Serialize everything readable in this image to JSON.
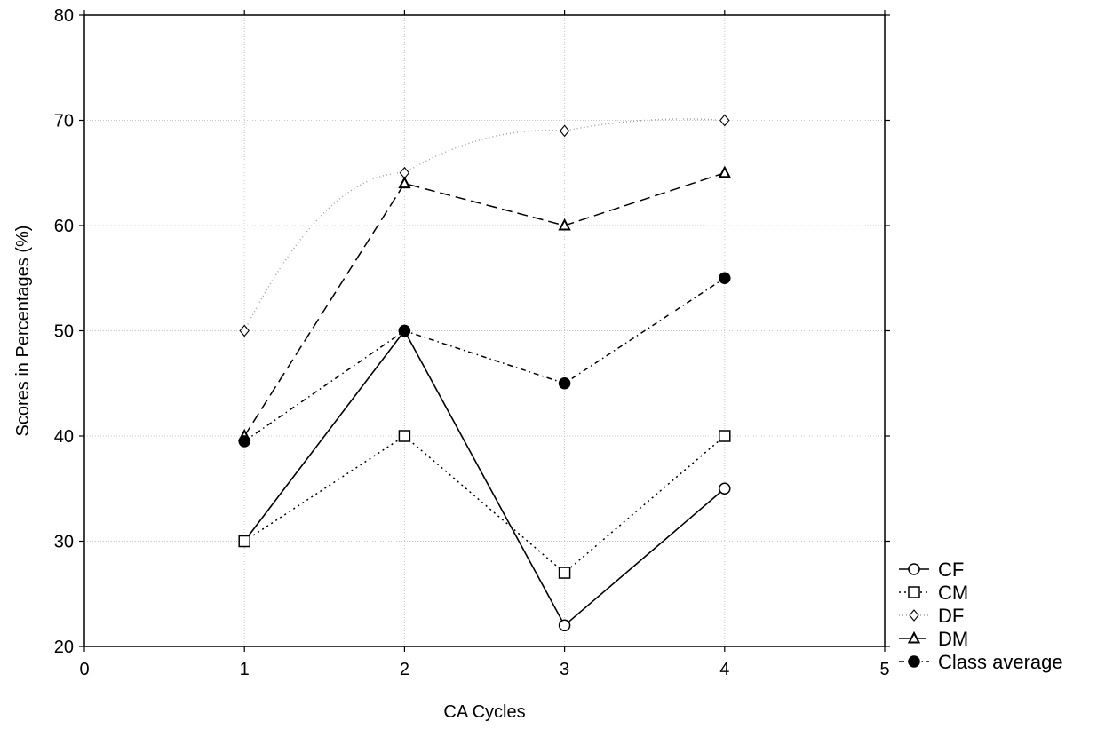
{
  "chart_data": {
    "type": "line",
    "title": "",
    "xlabel": "CA Cycles",
    "ylabel": "Scores in Percentages (%)",
    "xlim": [
      0,
      5
    ],
    "ylim": [
      20,
      80
    ],
    "xticks": [
      0,
      1,
      2,
      3,
      4,
      5
    ],
    "yticks": [
      20,
      30,
      40,
      50,
      60,
      70,
      80
    ],
    "grid": true,
    "legend_position": "bottom-right outside",
    "x": [
      1,
      2,
      3,
      4
    ],
    "series": [
      {
        "name": "CF",
        "values": [
          30,
          50,
          22,
          35
        ],
        "marker": "circle",
        "filled": false,
        "dash": "solid",
        "color": "#000000"
      },
      {
        "name": "CM",
        "values": [
          30,
          40,
          27,
          40
        ],
        "marker": "square",
        "filled": false,
        "dash": "dotted",
        "color": "#000000"
      },
      {
        "name": "DF",
        "values": [
          50,
          65,
          69,
          70
        ],
        "marker": "diamond",
        "filled": false,
        "dash": "fine-dotted",
        "color": "#000000"
      },
      {
        "name": "DM",
        "values": [
          40,
          64,
          60,
          65
        ],
        "marker": "triangle",
        "filled": false,
        "dash": "dashed",
        "color": "#000000"
      },
      {
        "name": "Class average",
        "values": [
          39.5,
          50,
          45,
          55
        ],
        "marker": "circle",
        "filled": true,
        "dash": "dash-dot",
        "color": "#000000"
      }
    ]
  }
}
